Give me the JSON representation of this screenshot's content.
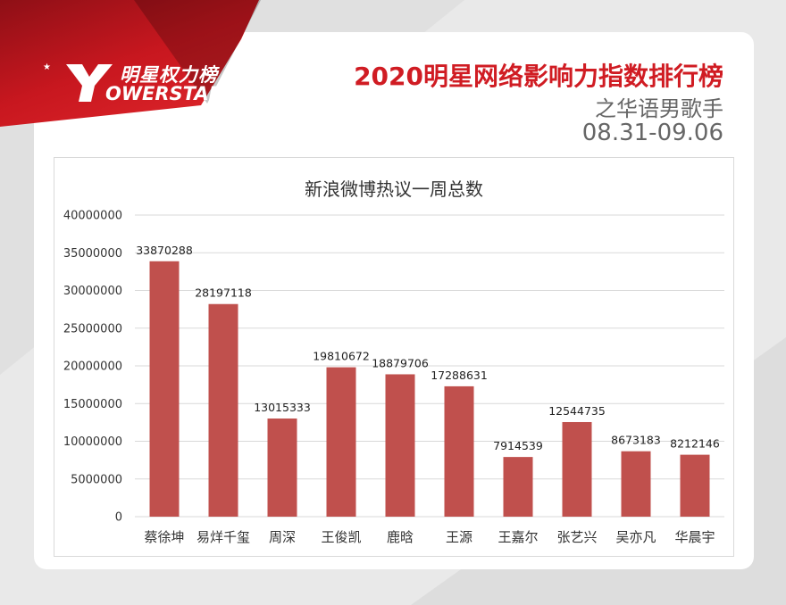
{
  "brand": {
    "logo_cn": "明星权力榜",
    "logo_en": "OWERSTAR",
    "logo_mark": "Y",
    "colors": {
      "brand_red": "#d01c23",
      "bar": "#c0504d"
    }
  },
  "header": {
    "title": "2020明星网络影响力指数排行榜",
    "subtitle": "之华语男歌手",
    "date_range": "08.31-09.06"
  },
  "chart_data": {
    "type": "bar",
    "title": "新浪微博热议一周总数",
    "categories": [
      "蔡徐坤",
      "易烊千玺",
      "周深",
      "王俊凯",
      "鹿晗",
      "王源",
      "王嘉尔",
      "张艺兴",
      "吴亦凡",
      "华晨宇"
    ],
    "values": [
      33870288,
      28197118,
      13015333,
      19810672,
      18879706,
      17288631,
      7914539,
      12544735,
      8673183,
      8212146
    ],
    "ylim": [
      0,
      40000000
    ],
    "yticks": [
      0,
      5000000,
      10000000,
      15000000,
      20000000,
      25000000,
      30000000,
      35000000,
      40000000
    ],
    "grid": true,
    "data_labels": true,
    "color": "#c0504d"
  }
}
